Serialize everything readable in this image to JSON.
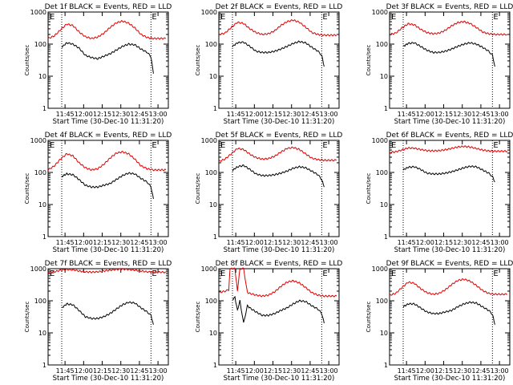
{
  "ylabel": "Counts/sec",
  "xlabel": "Start Time (30-Dec-10 11:31:20)",
  "y_ticks": [
    "1",
    "10",
    "100",
    "1000"
  ],
  "x_ticks": [
    "11:45",
    "12:00",
    "12:15",
    "12:30",
    "12:45",
    "13:00"
  ],
  "marker_label_left": "E",
  "marker_label_right": "E",
  "colors": {
    "events": "#000000",
    "lld": "#e00000"
  },
  "chart_data": [
    {
      "type": "line",
      "title": "Det 1f BLACK = Events, RED = LLD",
      "xlabel": "Start Time (30-Dec-10 11:31:20)",
      "ylabel": "Counts/sec",
      "x_units": "minutes after 11:31:20",
      "xlim": [
        0,
        97
      ],
      "ylim": [
        1,
        1000
      ],
      "yscale": "log",
      "markers_x": [
        11,
        83
      ],
      "series": [
        {
          "color": "#e00000",
          "x": [
            0,
            5,
            10,
            15,
            20,
            25,
            30,
            35,
            40,
            45,
            50,
            55,
            60,
            65,
            70,
            75,
            80,
            85,
            90,
            95
          ],
          "y": [
            150,
            180,
            280,
            420,
            380,
            240,
            170,
            150,
            165,
            220,
            330,
            460,
            520,
            450,
            320,
            200,
            160,
            150,
            150,
            150
          ]
        },
        {
          "color": "#000000",
          "x": [
            11,
            15,
            20,
            25,
            30,
            35,
            40,
            45,
            50,
            55,
            60,
            65,
            70,
            75,
            80,
            83,
            85
          ],
          "y": [
            80,
            110,
            100,
            75,
            45,
            38,
            35,
            42,
            50,
            65,
            85,
            100,
            95,
            70,
            55,
            40,
            12
          ]
        }
      ]
    },
    {
      "type": "line",
      "title": "Det 2f BLACK = Events, RED = LLD",
      "xlabel": "Start Time (30-Dec-10 11:31:20)",
      "ylabel": "Counts/sec",
      "x_units": "minutes after 11:31:20",
      "xlim": [
        0,
        97
      ],
      "ylim": [
        1,
        1000
      ],
      "yscale": "log",
      "markers_x": [
        11,
        83
      ],
      "series": [
        {
          "color": "#e00000",
          "x": [
            0,
            5,
            10,
            15,
            20,
            25,
            30,
            35,
            40,
            45,
            50,
            55,
            60,
            65,
            70,
            75,
            80,
            85,
            90,
            95
          ],
          "y": [
            200,
            220,
            330,
            480,
            440,
            300,
            230,
            200,
            210,
            260,
            380,
            500,
            560,
            480,
            340,
            230,
            200,
            190,
            190,
            190
          ]
        },
        {
          "color": "#000000",
          "x": [
            11,
            15,
            20,
            25,
            30,
            35,
            40,
            45,
            50,
            55,
            60,
            65,
            70,
            75,
            80,
            83,
            85
          ],
          "y": [
            85,
            110,
            115,
            85,
            60,
            55,
            55,
            60,
            70,
            85,
            105,
            120,
            110,
            80,
            60,
            45,
            20
          ]
        }
      ]
    },
    {
      "type": "line",
      "title": "Det 3f BLACK = Events, RED = LLD",
      "xlabel": "Start Time (30-Dec-10 11:31:20)",
      "ylabel": "Counts/sec",
      "x_units": "minutes after 11:31:20",
      "xlim": [
        0,
        97
      ],
      "ylim": [
        1,
        1000
      ],
      "yscale": "log",
      "markers_x": [
        11,
        83
      ],
      "series": [
        {
          "color": "#e00000",
          "x": [
            0,
            5,
            10,
            15,
            20,
            25,
            30,
            35,
            40,
            45,
            50,
            55,
            60,
            65,
            70,
            75,
            80,
            85,
            90,
            95
          ],
          "y": [
            200,
            220,
            320,
            430,
            400,
            290,
            230,
            210,
            220,
            270,
            370,
            470,
            500,
            440,
            330,
            240,
            210,
            200,
            200,
            200
          ]
        },
        {
          "color": "#000000",
          "x": [
            11,
            15,
            20,
            25,
            30,
            35,
            40,
            45,
            50,
            55,
            60,
            65,
            70,
            75,
            80,
            83,
            85
          ],
          "y": [
            85,
            105,
            110,
            85,
            65,
            55,
            55,
            60,
            70,
            85,
            100,
            110,
            100,
            80,
            60,
            45,
            20
          ]
        }
      ]
    },
    {
      "type": "line",
      "title": "Det 4f BLACK = Events, RED = LLD",
      "xlabel": "Start Time (30-Dec-10 11:31:20)",
      "ylabel": "Counts/sec",
      "x_units": "minutes after 11:31:20",
      "xlim": [
        0,
        97
      ],
      "ylim": [
        1,
        1000
      ],
      "yscale": "log",
      "markers_x": [
        11,
        83
      ],
      "series": [
        {
          "color": "#e00000",
          "x": [
            0,
            5,
            10,
            15,
            20,
            25,
            30,
            35,
            40,
            45,
            50,
            55,
            60,
            65,
            70,
            75,
            80,
            85,
            90,
            95
          ],
          "y": [
            120,
            160,
            260,
            380,
            330,
            200,
            140,
            120,
            130,
            180,
            280,
            400,
            440,
            380,
            260,
            160,
            130,
            120,
            120,
            120
          ]
        },
        {
          "color": "#000000",
          "x": [
            11,
            15,
            20,
            25,
            30,
            35,
            40,
            45,
            50,
            55,
            60,
            65,
            70,
            75,
            80,
            83,
            85
          ],
          "y": [
            75,
            90,
            85,
            60,
            40,
            35,
            35,
            40,
            45,
            60,
            80,
            95,
            90,
            65,
            50,
            35,
            15
          ]
        }
      ]
    },
    {
      "type": "line",
      "title": "Det 5f BLACK = Events, RED = LLD",
      "xlabel": "Start Time (30-Dec-10 11:31:20)",
      "ylabel": "Counts/sec",
      "x_units": "minutes after 11:31:20",
      "xlim": [
        0,
        97
      ],
      "ylim": [
        1,
        1000
      ],
      "yscale": "log",
      "markers_x": [
        11,
        83
      ],
      "series": [
        {
          "color": "#e00000",
          "x": [
            0,
            5,
            10,
            15,
            20,
            25,
            30,
            35,
            40,
            45,
            50,
            55,
            60,
            65,
            70,
            75,
            80,
            85,
            90,
            95
          ],
          "y": [
            220,
            260,
            380,
            560,
            520,
            370,
            290,
            260,
            270,
            320,
            430,
            560,
            600,
            520,
            380,
            280,
            250,
            240,
            240,
            240
          ]
        },
        {
          "color": "#000000",
          "x": [
            11,
            15,
            20,
            25,
            30,
            35,
            40,
            45,
            50,
            55,
            60,
            65,
            70,
            75,
            80,
            83,
            85
          ],
          "y": [
            115,
            150,
            165,
            125,
            90,
            80,
            80,
            85,
            95,
            110,
            135,
            150,
            140,
            110,
            85,
            60,
            35
          ]
        }
      ]
    },
    {
      "type": "line",
      "title": "Det 6f BLACK = Events, RED = LLD",
      "xlabel": "Start Time (30-Dec-10 11:31:20)",
      "ylabel": "Counts/sec",
      "x_units": "minutes after 11:31:20",
      "xlim": [
        0,
        97
      ],
      "ylim": [
        1,
        1000
      ],
      "yscale": "log",
      "markers_x": [
        11,
        83
      ],
      "series": [
        {
          "color": "#e00000",
          "x": [
            0,
            5,
            10,
            15,
            20,
            25,
            30,
            35,
            40,
            45,
            50,
            55,
            60,
            65,
            70,
            75,
            80,
            85,
            90,
            95
          ],
          "y": [
            420,
            440,
            500,
            580,
            570,
            520,
            480,
            470,
            480,
            510,
            560,
            620,
            650,
            620,
            560,
            500,
            470,
            460,
            460,
            460
          ]
        },
        {
          "color": "#000000",
          "x": [
            11,
            15,
            20,
            25,
            30,
            35,
            40,
            45,
            50,
            55,
            60,
            65,
            70,
            75,
            80,
            83,
            85
          ],
          "y": [
            120,
            145,
            150,
            125,
            95,
            90,
            90,
            95,
            105,
            120,
            140,
            155,
            150,
            120,
            95,
            75,
            50
          ]
        }
      ]
    },
    {
      "type": "line",
      "title": "Det 7f BLACK = Events, RED = LLD",
      "xlabel": "Start Time (30-Dec-10 11:31:20)",
      "ylabel": "Counts/sec",
      "x_units": "minutes after 11:31:20",
      "xlim": [
        0,
        97
      ],
      "ylim": [
        1,
        1000
      ],
      "yscale": "log",
      "markers_x": [
        11,
        83
      ],
      "series": [
        {
          "color": "#e00000",
          "x": [
            0,
            5,
            10,
            15,
            20,
            25,
            30,
            35,
            40,
            45,
            50,
            55,
            60,
            65,
            70,
            75,
            80,
            85,
            90,
            95
          ],
          "y": [
            750,
            800,
            900,
            950,
            920,
            850,
            800,
            780,
            800,
            850,
            900,
            950,
            970,
            950,
            900,
            850,
            800,
            780,
            780,
            780
          ]
        },
        {
          "color": "#000000",
          "x": [
            11,
            15,
            20,
            25,
            30,
            35,
            40,
            45,
            50,
            55,
            60,
            65,
            70,
            75,
            80,
            83,
            85
          ],
          "y": [
            60,
            80,
            75,
            50,
            32,
            28,
            28,
            32,
            40,
            55,
            75,
            90,
            85,
            60,
            45,
            35,
            18
          ]
        }
      ]
    },
    {
      "type": "line",
      "title": "Det 8f BLACK = Events, RED = LLD",
      "xlabel": "Start Time (30-Dec-10 11:31:20)",
      "ylabel": "Counts/sec",
      "x_units": "minutes after 11:31:20",
      "xlim": [
        0,
        97
      ],
      "ylim": [
        1,
        1000
      ],
      "yscale": "log",
      "markers_x": [
        11,
        83
      ],
      "series": [
        {
          "color": "#e00000",
          "x": [
            0,
            5,
            8,
            9,
            13,
            15,
            17,
            20,
            23,
            25,
            30,
            35,
            40,
            45,
            50,
            55,
            60,
            65,
            70,
            75,
            80,
            85,
            90,
            95
          ],
          "y": [
            180,
            200,
            220,
            1000,
            1000,
            200,
            1000,
            1000,
            180,
            170,
            150,
            140,
            150,
            190,
            280,
            380,
            420,
            360,
            260,
            180,
            150,
            140,
            140,
            140
          ]
        },
        {
          "color": "#000000",
          "x": [
            11,
            13,
            15,
            17,
            20,
            23,
            25,
            30,
            35,
            40,
            45,
            50,
            55,
            60,
            65,
            70,
            75,
            80,
            83,
            85
          ],
          "y": [
            110,
            130,
            50,
            100,
            20,
            70,
            60,
            45,
            35,
            35,
            40,
            50,
            60,
            80,
            100,
            95,
            70,
            55,
            40,
            20
          ]
        }
      ]
    },
    {
      "type": "line",
      "title": "Det 9f BLACK = Events, RED = LLD",
      "xlabel": "Start Time (30-Dec-10 11:31:20)",
      "ylabel": "Counts/sec",
      "x_units": "minutes after 11:31:20",
      "xlim": [
        0,
        97
      ],
      "ylim": [
        1,
        1000
      ],
      "yscale": "log",
      "markers_x": [
        11,
        83
      ],
      "series": [
        {
          "color": "#e00000",
          "x": [
            0,
            5,
            10,
            15,
            20,
            25,
            30,
            35,
            40,
            45,
            50,
            55,
            60,
            65,
            70,
            75,
            80,
            85,
            90,
            95
          ],
          "y": [
            150,
            170,
            260,
            380,
            350,
            240,
            180,
            160,
            170,
            220,
            320,
            430,
            470,
            410,
            300,
            210,
            170,
            160,
            160,
            160
          ]
        },
        {
          "color": "#000000",
          "x": [
            11,
            15,
            20,
            25,
            30,
            35,
            40,
            45,
            50,
            55,
            60,
            65,
            70,
            75,
            80,
            83,
            85
          ],
          "y": [
            65,
            80,
            80,
            60,
            45,
            40,
            40,
            45,
            50,
            65,
            80,
            90,
            85,
            65,
            50,
            38,
            18
          ]
        }
      ]
    }
  ]
}
